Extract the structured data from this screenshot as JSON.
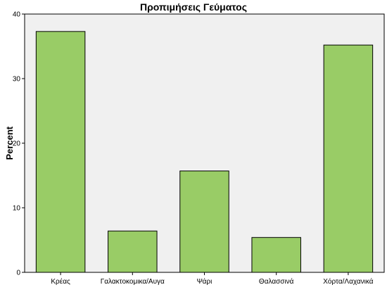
{
  "chart_data": {
    "type": "bar",
    "title": "Προπιμήσεις Γεύματος",
    "xlabel": "",
    "ylabel": "Percent",
    "categories": [
      "Κρέας",
      "Γαλακτοκομικα/Αυγα",
      "Ψάρι",
      "Θαλασσινά",
      "Χόρτα/Λαχανικά"
    ],
    "values": [
      37.3,
      6.4,
      15.7,
      5.4,
      35.2
    ],
    "ylim": [
      0,
      40
    ],
    "yticks": [
      0,
      10,
      20,
      30,
      40
    ],
    "grid": false,
    "legend": "none",
    "colors": {
      "bar_fill": "#99cc66",
      "bar_stroke": "#000000",
      "plot_background": "#f0f0f0",
      "axis": "#000000"
    }
  }
}
